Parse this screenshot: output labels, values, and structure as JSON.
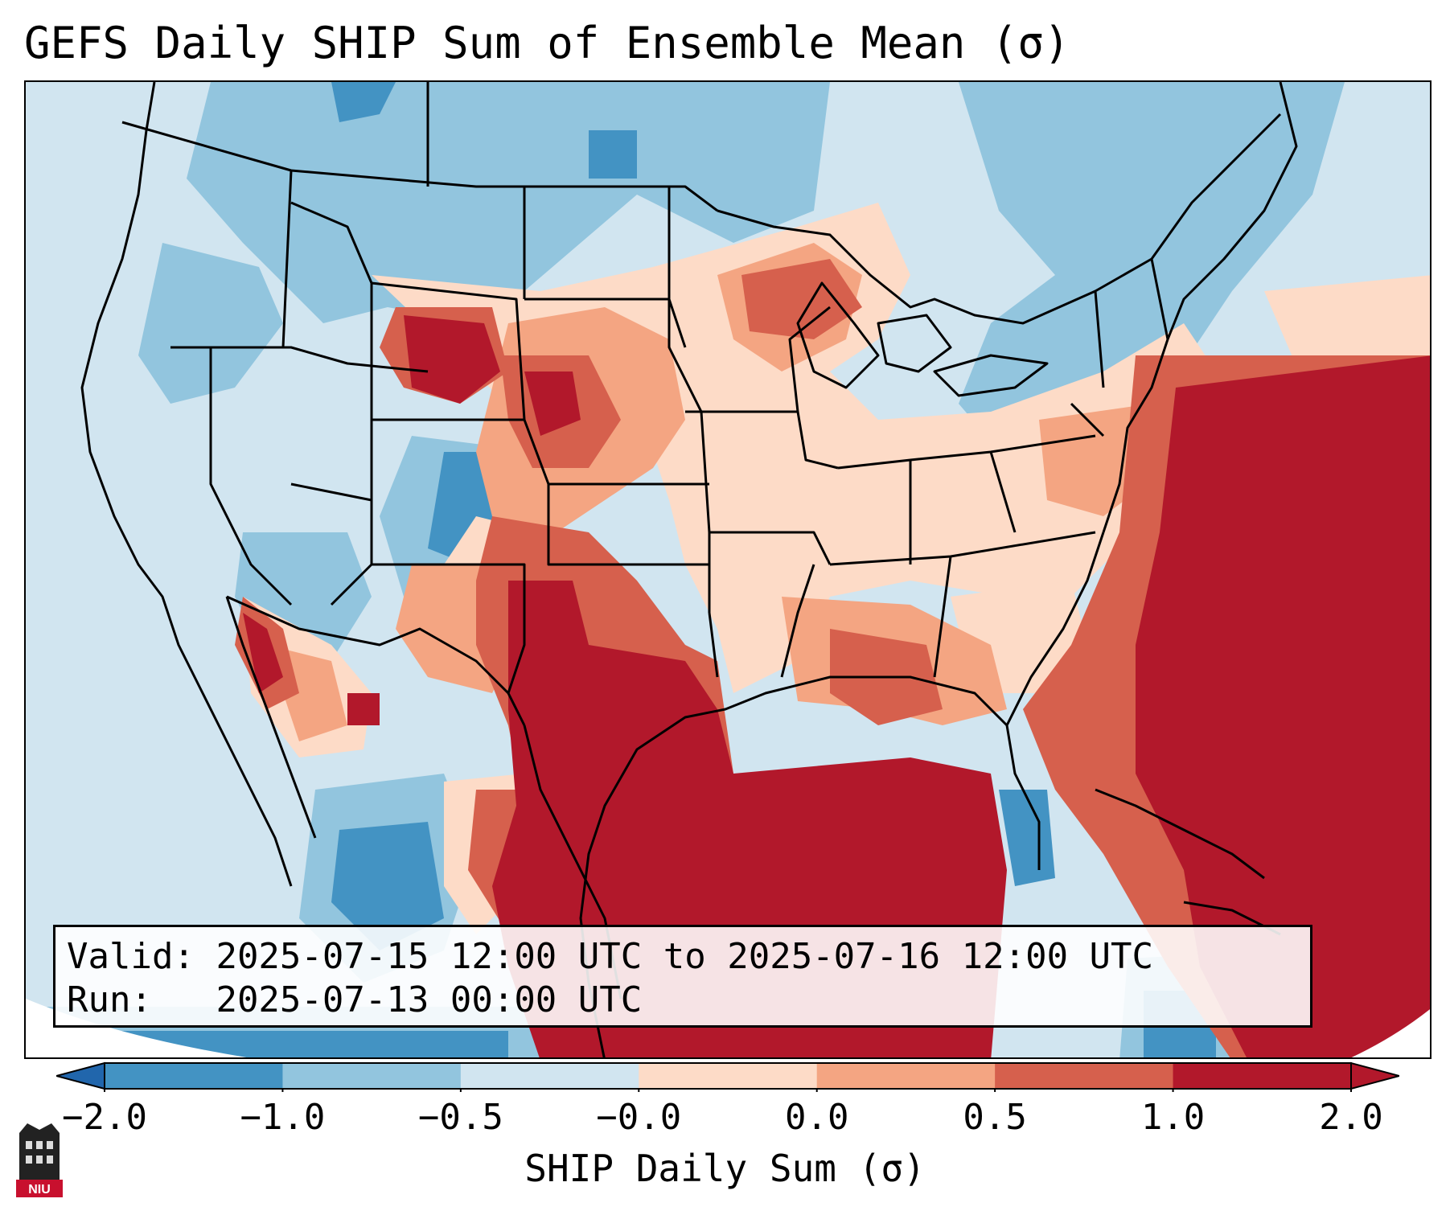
{
  "title": "GEFS Daily SHIP Sum of Ensemble Mean (σ)",
  "info": {
    "valid_label": "Valid:",
    "valid_value": "2025-07-15 12:00 UTC to 2025-07-16 12:00 UTC",
    "run_label": "Run:",
    "run_value": "2025-07-13 00:00 UTC"
  },
  "colorbar": {
    "label": "SHIP Daily Sum (σ)",
    "ticks": [
      "−2.0",
      "−1.0",
      "−0.5",
      "−0.0",
      "0.0",
      "0.5",
      "1.0",
      "2.0"
    ],
    "colors": [
      "#4393c3",
      "#92c5de",
      "#d1e5f0",
      "#fddbc7",
      "#f4a582",
      "#d6604d",
      "#b2182b"
    ],
    "extend_low_color": "#2166ac",
    "extend_high_color": "#b2182b"
  },
  "logo": {
    "text": "NIU"
  }
}
